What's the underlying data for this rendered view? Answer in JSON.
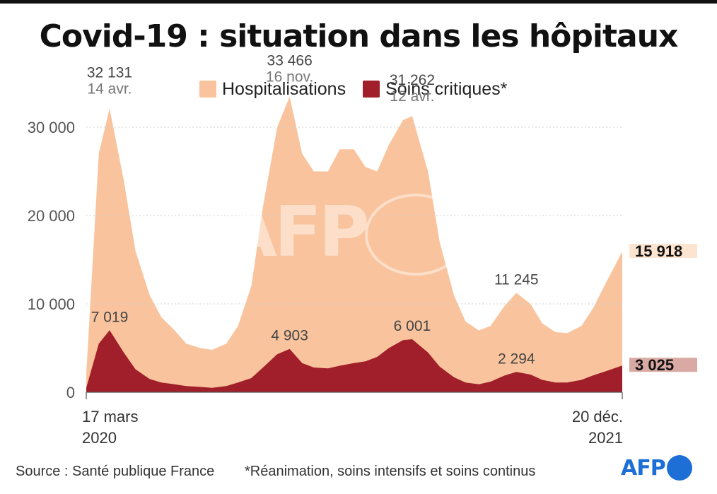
{
  "title": "Covid-19 : situation dans les hôpitaux",
  "legend": [
    {
      "label": "Hospitalisations",
      "color": "#f9c49d"
    },
    {
      "label": "Soins critiques*",
      "color": "#a01f2a"
    }
  ],
  "footer": {
    "source": "Source : Santé publique France",
    "note": "*Réanimation, soins intensifs et soins continus",
    "logo": "AFP"
  },
  "watermark": "AFP",
  "chart_data": {
    "type": "area",
    "title": "Covid-19 : situation dans les hôpitaux",
    "x_start_label": [
      "17 mars",
      "2020"
    ],
    "x_end_label": [
      "20 déc.",
      "2021"
    ],
    "x": [
      "2020-03-17",
      "2020-04-01",
      "2020-04-14",
      "2020-05-01",
      "2020-05-15",
      "2020-06-01",
      "2020-06-15",
      "2020-07-01",
      "2020-07-15",
      "2020-08-01",
      "2020-08-15",
      "2020-09-01",
      "2020-09-15",
      "2020-10-01",
      "2020-10-15",
      "2020-11-01",
      "2020-11-16",
      "2020-12-01",
      "2020-12-15",
      "2021-01-01",
      "2021-01-15",
      "2021-02-01",
      "2021-02-15",
      "2021-03-01",
      "2021-03-15",
      "2021-04-01",
      "2021-04-12",
      "2021-05-01",
      "2021-05-15",
      "2021-06-01",
      "2021-06-15",
      "2021-07-01",
      "2021-07-15",
      "2021-08-01",
      "2021-08-15",
      "2021-09-01",
      "2021-09-15",
      "2021-10-01",
      "2021-10-15",
      "2021-11-01",
      "2021-11-15",
      "2021-12-01",
      "2021-12-20"
    ],
    "ylim": [
      0,
      34000
    ],
    "yticks": [
      0,
      10000,
      20000,
      30000
    ],
    "ytick_labels": [
      "0",
      "10 000",
      "20 000",
      "30 000"
    ],
    "grid": true,
    "series": [
      {
        "name": "Hospitalisations",
        "color": "#f9c49d",
        "values": [
          2000,
          27000,
          32131,
          24000,
          16000,
          11000,
          8500,
          7000,
          5500,
          5000,
          4800,
          5500,
          7500,
          12000,
          21000,
          30000,
          33466,
          27000,
          25000,
          25000,
          27500,
          27500,
          25500,
          25000,
          28000,
          30800,
          31262,
          25000,
          17000,
          11000,
          8000,
          7000,
          7500,
          9800,
          11245,
          10000,
          7800,
          6800,
          6700,
          7500,
          9500,
          12500,
          15918
        ]
      },
      {
        "name": "Soins critiques",
        "color": "#a01f2a",
        "values": [
          500,
          5500,
          7019,
          4500,
          2600,
          1500,
          1100,
          900,
          700,
          600,
          500,
          700,
          1100,
          1600,
          2800,
          4300,
          4903,
          3300,
          2800,
          2700,
          3000,
          3300,
          3500,
          4000,
          5000,
          5900,
          6001,
          4500,
          2900,
          1700,
          1100,
          900,
          1200,
          1900,
          2294,
          2000,
          1400,
          1100,
          1100,
          1400,
          1900,
          2400,
          3025
        ]
      }
    ],
    "annotations": [
      {
        "series": "Hospitalisations",
        "date": "2020-04-14",
        "value": "32 131",
        "date_label": "14 avr."
      },
      {
        "series": "Hospitalisations",
        "date": "2020-11-16",
        "value": "33 466",
        "date_label": "16 nov."
      },
      {
        "series": "Hospitalisations",
        "date": "2021-04-12",
        "value": "31 262",
        "date_label": "12 avr."
      },
      {
        "series": "Hospitalisations",
        "date": "2021-08-15",
        "value": "11 245",
        "date_label": ""
      },
      {
        "series": "Soins critiques",
        "date": "2020-04-14",
        "value": "7 019",
        "date_label": ""
      },
      {
        "series": "Soins critiques",
        "date": "2020-11-16",
        "value": "4 903",
        "date_label": ""
      },
      {
        "series": "Soins critiques",
        "date": "2021-04-12",
        "value": "6 001",
        "date_label": ""
      },
      {
        "series": "Soins critiques",
        "date": "2021-08-15",
        "value": "2 294",
        "date_label": ""
      }
    ],
    "end_labels": [
      {
        "series": "Hospitalisations",
        "value": "15 918",
        "bg": "#fde4d0"
      },
      {
        "series": "Soins critiques",
        "value": "3 025",
        "bg": "#d9a9a3"
      }
    ]
  }
}
